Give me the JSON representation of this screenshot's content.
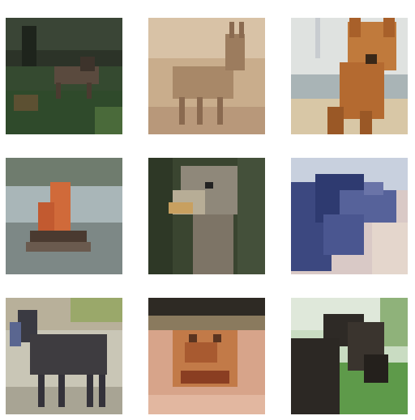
{
  "grid": {
    "tiles": [
      {
        "label": "deer"
      },
      {
        "label": "deer"
      },
      {
        "label": "dog"
      },
      {
        "label": "ship"
      },
      {
        "label": "bird"
      },
      {
        "label": "airplane"
      },
      {
        "label": "horse"
      },
      {
        "label": "frog"
      },
      {
        "label": "horse"
      }
    ]
  }
}
